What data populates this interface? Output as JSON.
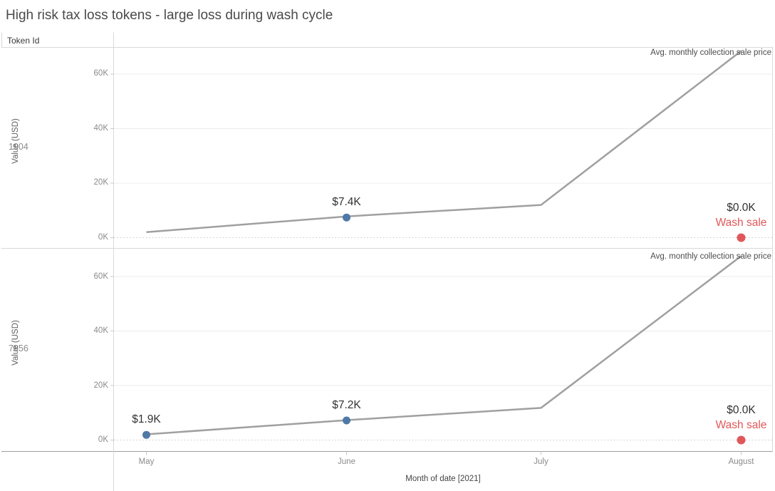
{
  "title": "High risk tax loss tokens - large loss during wash cycle",
  "row_header": "Token Id",
  "annotation_label": "Avg. monthly collection sale price",
  "axis": {
    "ylabel": "Value (USD)",
    "xlabel": "Month of date [2021]",
    "months": [
      "May",
      "June",
      "July",
      "August"
    ],
    "ytick_labels": [
      "0K",
      "20K",
      "40K",
      "60K"
    ]
  },
  "rows": [
    {
      "token_id": "1904"
    },
    {
      "token_id": "7856"
    }
  ],
  "colors": {
    "blue_point": "#4e79a7",
    "red_point": "#e15759",
    "wash_sale_text": "#e15759",
    "trend_line": "#a0a0a0",
    "gridline": "#ececec",
    "zero_line": "#c9c9c9",
    "panel_border": "#d9d9d9",
    "axis_line": "#9e9e9e",
    "tick_text": "#8a8a8a",
    "label_text": "#323232",
    "title_text": "#4a4a4a"
  },
  "chart_data": [
    {
      "type": "line",
      "token_id": "1904",
      "x": [
        "May",
        "June",
        "July",
        "August"
      ],
      "series": [
        {
          "name": "Avg. monthly collection sale price",
          "values_usd_k": [
            2.0,
            7.8,
            12.0,
            68.5
          ]
        }
      ],
      "points": [
        {
          "month": "June",
          "value_usd_k": 7.4,
          "label": "$7.4K",
          "type": "sale"
        },
        {
          "month": "August",
          "value_usd_k": 0.0,
          "label": "$0.0K",
          "sublabel": "Wash sale",
          "type": "wash_sale"
        }
      ],
      "ylabel": "Value (USD)",
      "xlabel": "Month of date [2021]",
      "yticks_usd_k": [
        0,
        20,
        40,
        60
      ],
      "ylim_usd_k": [
        0,
        70
      ],
      "grid": true,
      "legend": "none"
    },
    {
      "type": "line",
      "token_id": "7856",
      "x": [
        "May",
        "June",
        "July",
        "August"
      ],
      "series": [
        {
          "name": "Avg. monthly collection sale price",
          "values_usd_k": [
            2.1,
            7.3,
            11.8,
            67.5
          ]
        }
      ],
      "points": [
        {
          "month": "May",
          "value_usd_k": 1.9,
          "label": "$1.9K",
          "type": "sale"
        },
        {
          "month": "June",
          "value_usd_k": 7.2,
          "label": "$7.2K",
          "type": "sale"
        },
        {
          "month": "August",
          "value_usd_k": 0.0,
          "label": "$0.0K",
          "sublabel": "Wash sale",
          "type": "wash_sale"
        }
      ],
      "ylabel": "Value (USD)",
      "xlabel": "Month of date [2021]",
      "yticks_usd_k": [
        0,
        20,
        40,
        60
      ],
      "ylim_usd_k": [
        0,
        70
      ],
      "grid": true,
      "legend": "none"
    }
  ]
}
